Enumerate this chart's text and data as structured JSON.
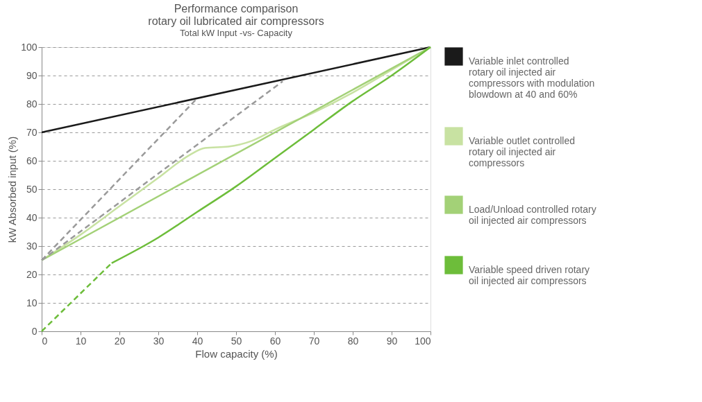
{
  "chart_data": {
    "type": "line",
    "title": "Performance comparison",
    "subtitle": "rotary oil lubricated air compressors",
    "annotations": [
      "Total kW Input -vs- Capacity"
    ],
    "xlabel": "Flow capacity (%)",
    "ylabel": "kW Absorbed input (%)",
    "xlim": [
      0,
      100
    ],
    "xticks": [
      0,
      10,
      20,
      30,
      40,
      50,
      60,
      70,
      80,
      90,
      100
    ],
    "ylim": [
      0,
      100
    ],
    "yticks": [
      0,
      10,
      20,
      30,
      40,
      50,
      60,
      70,
      80,
      90,
      100
    ],
    "grid": "y",
    "legend": "right",
    "marker": "none",
    "series": [
      {
        "name": "Variable inlet controlled rotary oil injected air compressors with modulation blowdown at 40 and 60%",
        "color": "#1a1a1a",
        "x": [
          0,
          100
        ],
        "values": [
          70,
          100
        ],
        "line_style": "solid"
      },
      {
        "name": "Variable outlet controlled rotary oil injected air compressors",
        "color": "#c8e2a2",
        "x": [
          0,
          10,
          20,
          30,
          38,
          42,
          48,
          54,
          60,
          70,
          80,
          90,
          100
        ],
        "values": [
          25,
          34,
          44,
          54,
          62,
          64.5,
          65,
          67,
          71,
          77,
          84,
          92,
          100
        ],
        "line_style": "solid"
      },
      {
        "name": "Load/Unload controlled rotary oil injected air compressors",
        "color": "#a3d177",
        "x": [
          0,
          100
        ],
        "values": [
          25,
          100
        ],
        "line_style": "solid"
      },
      {
        "name": "Variable speed driven rotary oil injected air compressors",
        "color": "#6dbd3a",
        "x": [
          18,
          30,
          40,
          50,
          60,
          70,
          80,
          90,
          100
        ],
        "values": [
          24,
          33,
          42,
          51,
          61,
          71,
          81,
          90,
          100
        ],
        "line_style": "solid"
      },
      {
        "color": "#6dbd3a",
        "x": [
          0,
          18
        ],
        "values": [
          0,
          24
        ],
        "line_style": "dashed"
      },
      {
        "color": "#9a9a9a",
        "x": [
          0,
          40
        ],
        "values": [
          25,
          82
        ],
        "line_style": "dashed"
      },
      {
        "color": "#9a9a9a",
        "x": [
          0,
          62
        ],
        "values": [
          25,
          88
        ],
        "line_style": "dashed"
      }
    ]
  }
}
